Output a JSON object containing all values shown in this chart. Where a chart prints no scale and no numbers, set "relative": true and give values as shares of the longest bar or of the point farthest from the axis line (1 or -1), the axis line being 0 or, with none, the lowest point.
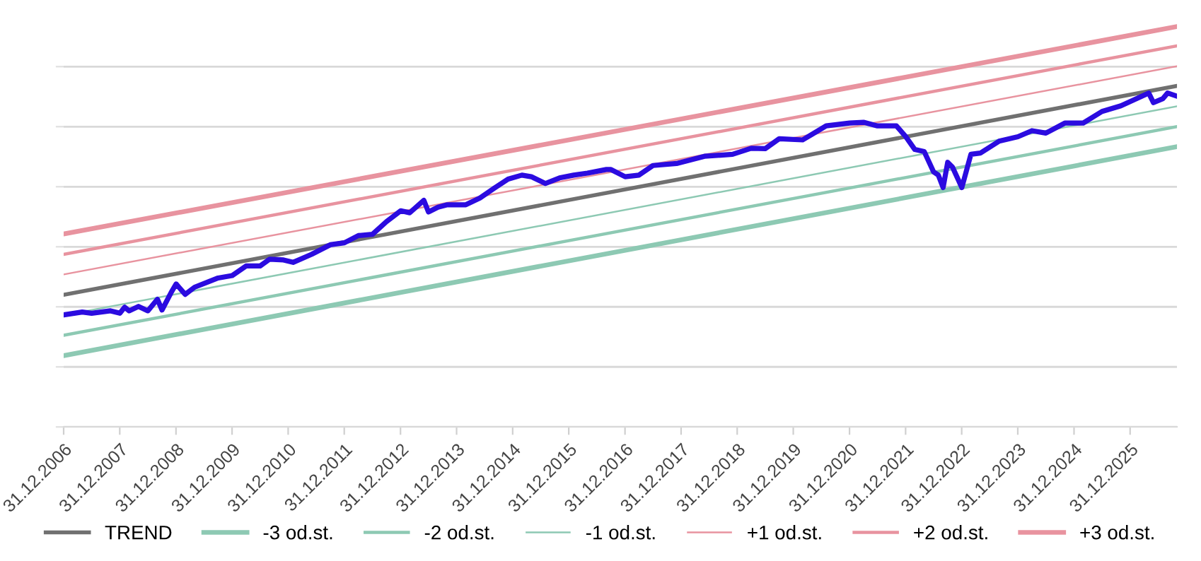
{
  "chart_data": {
    "type": "line",
    "relative": true,
    "grid": "y",
    "legend": "bottom",
    "line_style": "solid",
    "marker": "none",
    "xlim": [
      "2006-12-31",
      "2026-11"
    ],
    "xticks": [
      {
        "value": "2006-12-31",
        "label": "31.12.2006"
      },
      {
        "value": "2007-12-31",
        "label": "31.12.2007"
      },
      {
        "value": "2008-12-31",
        "label": "31.12.2008"
      },
      {
        "value": "2009-12-31",
        "label": "31.12.2009"
      },
      {
        "value": "2010-12-31",
        "label": "31.12.2010"
      },
      {
        "value": "2011-12-31",
        "label": "31.12.2011"
      },
      {
        "value": "2012-12-31",
        "label": "31.12.2012"
      },
      {
        "value": "2013-12-31",
        "label": "31.12.2013"
      },
      {
        "value": "2014-12-31",
        "label": "31.12.2014"
      },
      {
        "value": "2015-12-31",
        "label": "31.12.2015"
      },
      {
        "value": "2016-12-31",
        "label": "31.12.2016"
      },
      {
        "value": "2017-12-31",
        "label": "31.12.2017"
      },
      {
        "value": "2018-12-31",
        "label": "31.12.2018"
      },
      {
        "value": "2019-12-31",
        "label": "31.12.2019"
      },
      {
        "value": "2020-12-31",
        "label": "31.12.2020"
      },
      {
        "value": "2021-12-31",
        "label": "31.12.2021"
      },
      {
        "value": "2022-12-31",
        "label": "31.12.2022"
      },
      {
        "value": "2023-12-31",
        "label": "31.12.2023"
      },
      {
        "value": "2024-12-31",
        "label": "31.12.2024"
      },
      {
        "value": "2025-12-31",
        "label": "31.12.2025"
      }
    ],
    "series": [
      {
        "color": "#2b0be0",
        "x": [
          "2007-01",
          "2007-05",
          "2007-07",
          "2007-11",
          "2008-01",
          "2008-02",
          "2008-03",
          "2008-05",
          "2008-07",
          "2008-09",
          "2008-10",
          "2008-12",
          "2009-01",
          "2009-03",
          "2009-05",
          "2009-08",
          "2009-10",
          "2010-01",
          "2010-04",
          "2010-07",
          "2010-09",
          "2010-12",
          "2011-02",
          "2011-06",
          "2011-10",
          "2012-01",
          "2012-04",
          "2012-07",
          "2012-10",
          "2013-01",
          "2013-03",
          "2013-06",
          "2013-07",
          "2013-09",
          "2013-11",
          "2014-03",
          "2014-06",
          "2014-09",
          "2014-12",
          "2015-03",
          "2015-05",
          "2015-08",
          "2015-11",
          "2016-02",
          "2016-05",
          "2016-09",
          "2016-10",
          "2017-01",
          "2017-04",
          "2017-07",
          "2017-12",
          "2018-06",
          "2018-12",
          "2019-04",
          "2019-07",
          "2019-10",
          "2020-03",
          "2020-05",
          "2020-08",
          "2021-01",
          "2021-04",
          "2021-07",
          "2021-11",
          "2022-01",
          "2022-03",
          "2022-05",
          "2022-07",
          "2022-08",
          "2022-09",
          "2022-10",
          "2022-11",
          "2023-01",
          "2023-03",
          "2023-05",
          "2023-09",
          "2024-01",
          "2024-04",
          "2024-07",
          "2024-11",
          "2025-03",
          "2025-07",
          "2025-11",
          "2026-05",
          "2026-06",
          "2026-08",
          "2026-09",
          "2026-11"
        ],
        "values": [
          0.28,
          0.287,
          0.284,
          0.29,
          0.284,
          0.299,
          0.29,
          0.301,
          0.29,
          0.319,
          0.292,
          0.337,
          0.357,
          0.331,
          0.349,
          0.363,
          0.372,
          0.378,
          0.402,
          0.402,
          0.419,
          0.417,
          0.411,
          0.431,
          0.455,
          0.46,
          0.478,
          0.481,
          0.513,
          0.54,
          0.535,
          0.566,
          0.537,
          0.549,
          0.555,
          0.555,
          0.572,
          0.596,
          0.619,
          0.629,
          0.625,
          0.608,
          0.622,
          0.629,
          0.634,
          0.643,
          0.643,
          0.625,
          0.629,
          0.653,
          0.658,
          0.676,
          0.681,
          0.696,
          0.695,
          0.72,
          0.717,
          0.731,
          0.752,
          0.759,
          0.761,
          0.752,
          0.752,
          0.725,
          0.693,
          0.688,
          0.637,
          0.629,
          0.598,
          0.661,
          0.649,
          0.598,
          0.681,
          0.684,
          0.714,
          0.725,
          0.74,
          0.734,
          0.759,
          0.759,
          0.788,
          0.802,
          0.834,
          0.81,
          0.82,
          0.834,
          0.826
        ]
      },
      {
        "name": "TREND",
        "color": "#707070",
        "x": [
          "2007-01",
          "2026-11"
        ],
        "values": [
          0.33,
          0.852
        ]
      },
      {
        "name": "-3 od.st.",
        "color": "#8dc9b3",
        "x": [
          "2007-01",
          "2026-11"
        ],
        "values": [
          0.178,
          0.7
        ]
      },
      {
        "name": "-2 od.st.",
        "color": "#8dc9b3",
        "x": [
          "2007-01",
          "2026-11"
        ],
        "values": [
          0.229,
          0.75
        ]
      },
      {
        "name": "-1 od.st.",
        "color": "#8dc9b3",
        "x": [
          "2007-01",
          "2026-11"
        ],
        "values": [
          0.279,
          0.801
        ]
      },
      {
        "name": "+1 od.st.",
        "color": "#e8939f",
        "x": [
          "2007-01",
          "2026-11"
        ],
        "values": [
          0.381,
          0.901
        ]
      },
      {
        "name": "+2 od.st.",
        "color": "#e8939f",
        "x": [
          "2007-01",
          "2026-11"
        ],
        "values": [
          0.431,
          0.952
        ]
      },
      {
        "name": "+3 od.st.",
        "color": "#e8939f",
        "x": [
          "2007-01",
          "2026-11"
        ],
        "values": [
          0.482,
          1.0
        ]
      }
    ]
  }
}
